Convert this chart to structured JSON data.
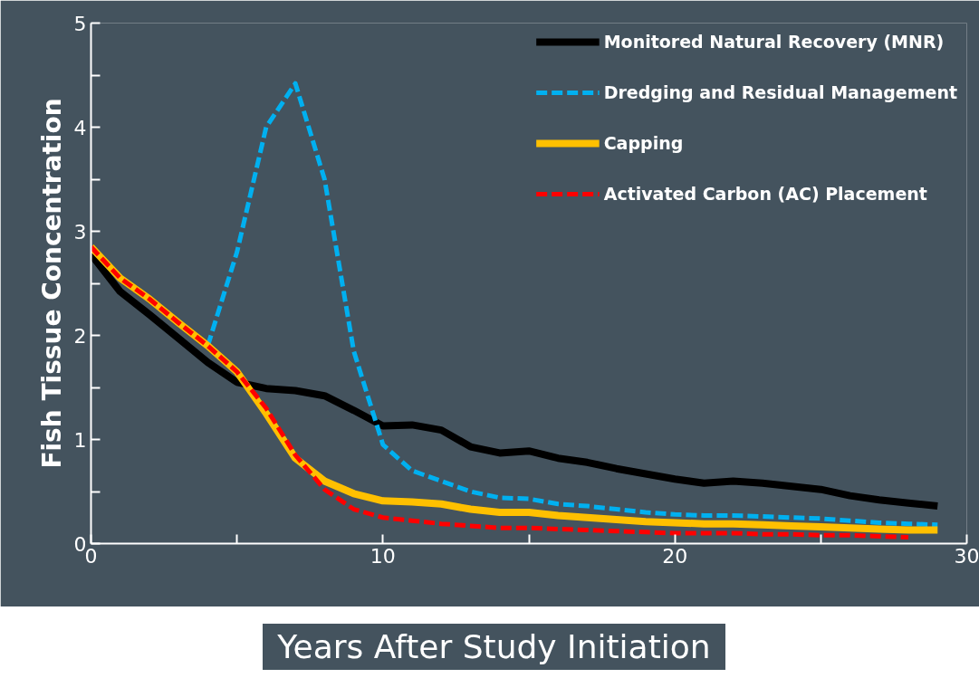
{
  "chart_data": {
    "type": "line",
    "xlabel": "Years After Study Initiation",
    "ylabel": "Fish Tissue Concentration",
    "x": [
      0,
      1,
      2,
      3,
      4,
      5,
      6,
      7,
      8,
      9,
      10,
      11,
      12,
      13,
      14,
      15,
      16,
      17,
      18,
      19,
      20,
      21,
      22,
      23,
      24,
      25,
      26,
      27,
      28,
      29
    ],
    "xlim": [
      0,
      30
    ],
    "xticks": [
      0,
      {
        "value": 5,
        "label": null
      },
      10,
      {
        "value": 15,
        "label": null
      },
      20,
      {
        "value": 25,
        "label": null
      },
      30
    ],
    "ylim": [
      0,
      5
    ],
    "yticks": [
      0,
      {
        "value": 0.5,
        "label": null
      },
      1,
      {
        "value": 1.5,
        "label": null
      },
      2,
      {
        "value": 2.5,
        "label": null
      },
      3,
      {
        "value": 3.5,
        "label": null
      },
      4,
      {
        "value": 4.5,
        "label": null
      },
      5
    ],
    "grid": false,
    "legend": "top right",
    "marker": "none",
    "series": [
      {
        "name": "Monitored Natural Recovery (MNR)",
        "color": "#000000",
        "line_style": "solid",
        "values": [
          2.78,
          2.42,
          2.2,
          1.97,
          1.74,
          1.55,
          1.49,
          1.47,
          1.42,
          1.28,
          1.13,
          1.14,
          1.09,
          0.93,
          0.87,
          0.89,
          0.82,
          0.78,
          0.72,
          0.67,
          0.62,
          0.58,
          0.6,
          0.58,
          0.55,
          0.52,
          0.46,
          0.42,
          0.39,
          0.36
        ]
      },
      {
        "name": "Dredging and Residual Management",
        "color": "#00b0f0",
        "line_style": "dashed",
        "values": [
          null,
          null,
          null,
          null,
          1.9,
          2.8,
          4.0,
          4.42,
          3.5,
          1.85,
          0.95,
          0.7,
          0.6,
          0.5,
          0.44,
          0.43,
          0.38,
          0.36,
          0.33,
          0.3,
          0.28,
          0.27,
          0.27,
          0.26,
          0.25,
          0.24,
          0.22,
          0.2,
          0.19,
          0.18
        ]
      },
      {
        "name": "Capping",
        "color": "#ffc000",
        "line_style": "solid",
        "values": [
          2.85,
          2.55,
          2.35,
          2.12,
          1.9,
          1.65,
          1.25,
          0.82,
          0.6,
          0.48,
          0.41,
          0.4,
          0.38,
          0.33,
          0.3,
          0.3,
          0.27,
          0.25,
          0.23,
          0.21,
          0.2,
          0.19,
          0.19,
          0.18,
          0.17,
          0.16,
          0.15,
          0.14,
          0.13,
          0.13
        ]
      },
      {
        "name": "Activated Carbon (AC) Placement",
        "color": "#ff0000",
        "line_style": "dashed",
        "values": [
          2.85,
          2.55,
          2.35,
          2.12,
          1.9,
          1.65,
          1.3,
          0.85,
          0.52,
          0.33,
          0.25,
          0.22,
          0.19,
          0.17,
          0.15,
          0.15,
          0.14,
          0.13,
          0.12,
          0.11,
          0.1,
          0.1,
          0.1,
          0.09,
          0.09,
          0.08,
          0.08,
          0.07,
          0.06,
          null
        ]
      }
    ]
  }
}
